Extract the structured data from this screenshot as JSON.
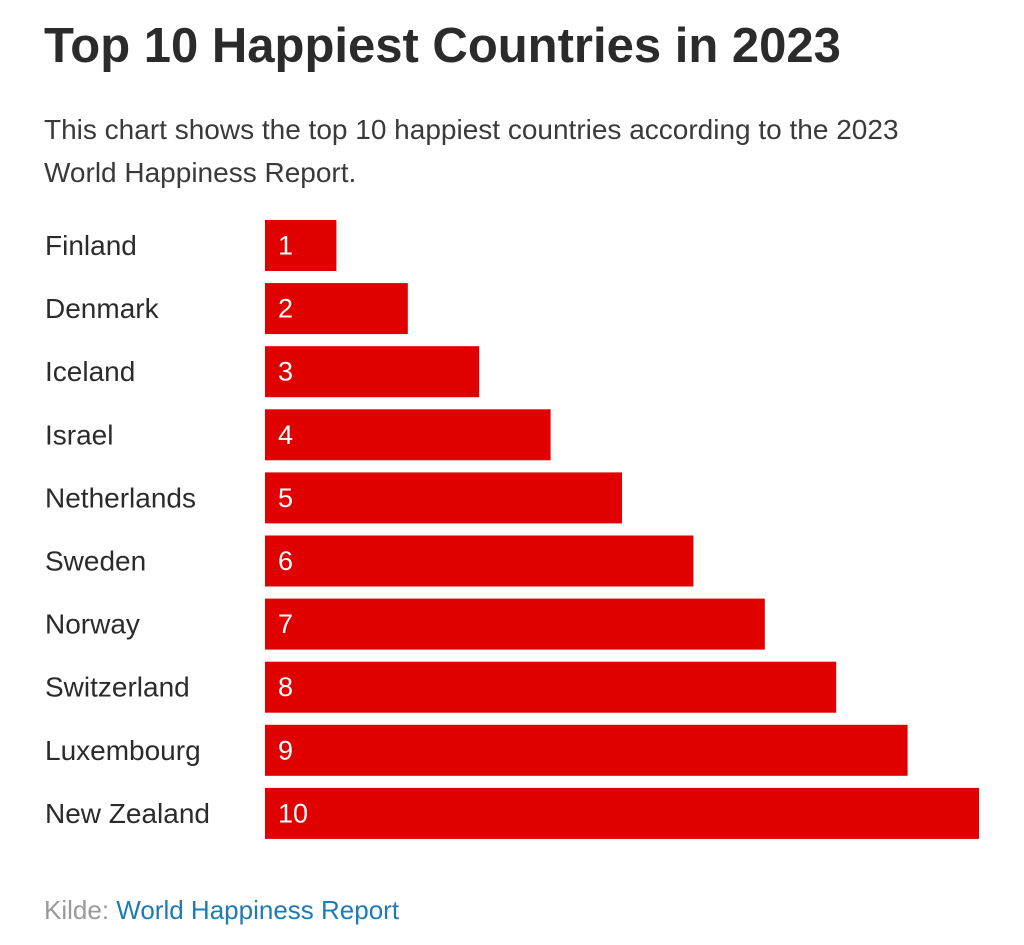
{
  "title": "Top 10 Happiest Countries in 2023",
  "subtitle": "This chart shows the top 10 happiest countries according to the 2023 World Happiness Report.",
  "source": {
    "label": "Kilde:",
    "link_text": "World Happiness Report"
  },
  "colors": {
    "bar": "#e00000",
    "bar_label": "#ffffff",
    "category_label": "#2b2b2b",
    "link": "#1f7bb6"
  },
  "chart_data": {
    "type": "bar",
    "orientation": "horizontal",
    "title": "Top 10 Happiest Countries in 2023",
    "subtitle": "This chart shows the top 10 happiest countries according to the 2023 World Happiness Report.",
    "categories": [
      "Finland",
      "Denmark",
      "Iceland",
      "Israel",
      "Netherlands",
      "Sweden",
      "Norway",
      "Switzerland",
      "Luxembourg",
      "New Zealand"
    ],
    "values": [
      1,
      2,
      3,
      4,
      5,
      6,
      7,
      8,
      9,
      10
    ],
    "data_labels": [
      "1",
      "2",
      "3",
      "4",
      "5",
      "6",
      "7",
      "8",
      "9",
      "10"
    ],
    "xlim": [
      0,
      10
    ],
    "xlabel": "",
    "ylabel": "",
    "grid": false,
    "legend": "none"
  }
}
